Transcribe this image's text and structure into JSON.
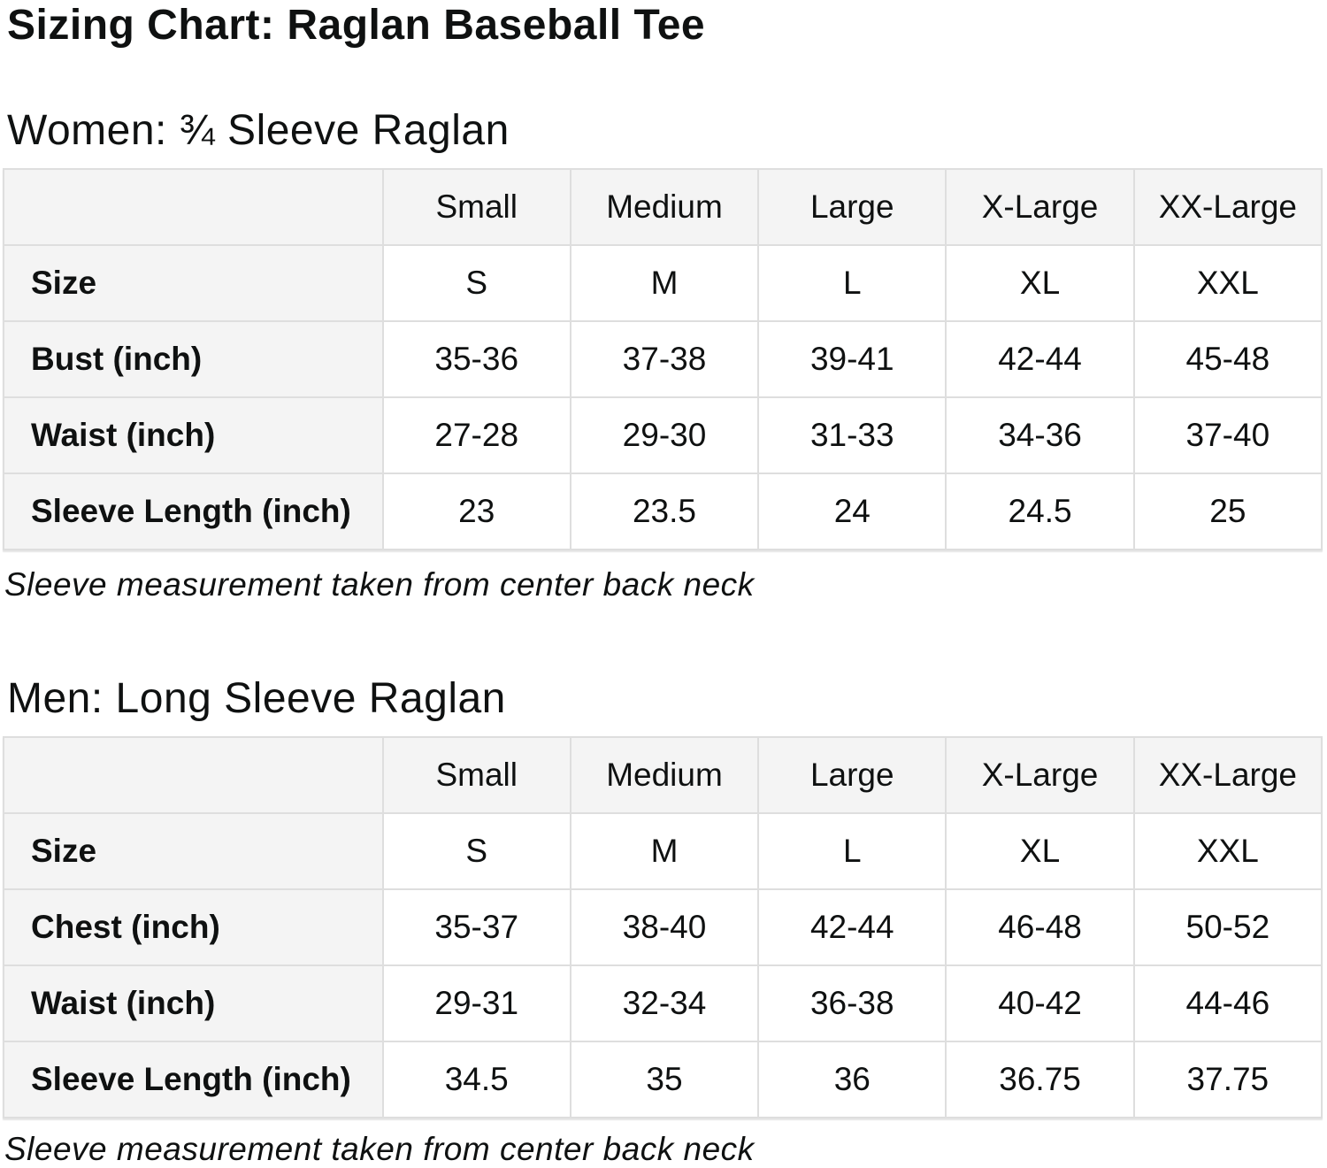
{
  "page": {
    "title": "Sizing Chart: Raglan Baseball Tee"
  },
  "colors": {
    "text": "#0f1111",
    "header_cell_bg": "#f4f4f4",
    "border": "#dedede",
    "page_bg": "#ffffff"
  },
  "chart_data": [
    {
      "type": "table",
      "title": "Women: ¾ Sleeve Raglan",
      "columns": [
        "",
        "Small",
        "Medium",
        "Large",
        "X-Large",
        "XX-Large"
      ],
      "rows": [
        {
          "label": "Size",
          "values": [
            "S",
            "M",
            "L",
            "XL",
            "XXL"
          ]
        },
        {
          "label": "Bust (inch)",
          "values": [
            "35-36",
            "37-38",
            "39-41",
            "42-44",
            "45-48"
          ]
        },
        {
          "label": "Waist (inch)",
          "values": [
            "27-28",
            "29-30",
            "31-33",
            "34-36",
            "37-40"
          ]
        },
        {
          "label": "Sleeve Length (inch)",
          "values": [
            "23",
            "23.5",
            "24",
            "24.5",
            "25"
          ]
        }
      ],
      "footnote": "Sleeve measurement taken from center back neck"
    },
    {
      "type": "table",
      "title": "Men: Long Sleeve Raglan",
      "columns": [
        "",
        "Small",
        "Medium",
        "Large",
        "X-Large",
        "XX-Large"
      ],
      "rows": [
        {
          "label": "Size",
          "values": [
            "S",
            "M",
            "L",
            "XL",
            "XXL"
          ]
        },
        {
          "label": "Chest (inch)",
          "values": [
            "35-37",
            "38-40",
            "42-44",
            "46-48",
            "50-52"
          ]
        },
        {
          "label": "Waist (inch)",
          "values": [
            "29-31",
            "32-34",
            "36-38",
            "40-42",
            "44-46"
          ]
        },
        {
          "label": "Sleeve Length (inch)",
          "values": [
            "34.5",
            "35",
            "36",
            "36.75",
            "37.75"
          ]
        }
      ],
      "footnote": "Sleeve measurement taken from center back neck"
    }
  ]
}
